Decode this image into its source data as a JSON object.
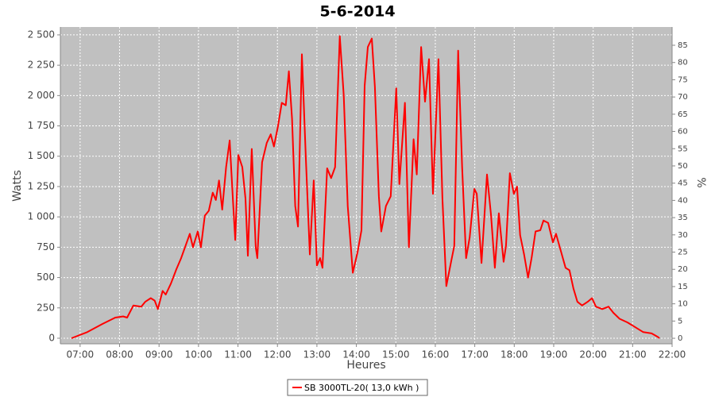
{
  "chart_data": {
    "type": "line",
    "title": "5-6-2014",
    "xlabel": "Heures",
    "ylabel": "Watts",
    "y2label": "%",
    "xlim": [
      6.5,
      22
    ],
    "xticks": [
      {
        "value": 7,
        "label": "07:00"
      },
      {
        "value": 8,
        "label": "08:00"
      },
      {
        "value": 9,
        "label": "09:00"
      },
      {
        "value": 10,
        "label": "10:00"
      },
      {
        "value": 11,
        "label": "11:00"
      },
      {
        "value": 12,
        "label": "12:00"
      },
      {
        "value": 13,
        "label": "13:00"
      },
      {
        "value": 14,
        "label": "14:00"
      },
      {
        "value": 15,
        "label": "15:00"
      },
      {
        "value": 16,
        "label": "16:00"
      },
      {
        "value": 17,
        "label": "17:00"
      },
      {
        "value": 18,
        "label": "18:00"
      },
      {
        "value": 19,
        "label": "19:00"
      },
      {
        "value": 20,
        "label": "20:00"
      },
      {
        "value": 21,
        "label": "21:00"
      },
      {
        "value": 22,
        "label": "22:00"
      }
    ],
    "ylim": [
      -46,
      2565
    ],
    "yticks": [
      0,
      250,
      500,
      750,
      {
        "value": 1000,
        "label": "1 000"
      },
      {
        "value": 1250,
        "label": "1 250"
      },
      {
        "value": 1500,
        "label": "1 500"
      },
      {
        "value": 1750,
        "label": "1 750"
      },
      {
        "value": 2000,
        "label": "2 000"
      },
      {
        "value": 2250,
        "label": "2 250"
      },
      {
        "value": 2500,
        "label": "2 500"
      }
    ],
    "y2lim": [
      -1.6,
      90.3
    ],
    "y2ticks": [
      0,
      5,
      10,
      15,
      20,
      25,
      30,
      35,
      40,
      45,
      50,
      55,
      60,
      65,
      70,
      75,
      80,
      85
    ],
    "grid": true,
    "legend": "bottom",
    "x": [
      6.78,
      7.18,
      7.58,
      7.89,
      8.09,
      8.19,
      8.35,
      8.55,
      8.65,
      8.79,
      8.89,
      8.97,
      9.09,
      9.17,
      9.3,
      9.44,
      9.56,
      9.68,
      9.78,
      9.86,
      9.98,
      10.06,
      10.16,
      10.26,
      10.36,
      10.44,
      10.52,
      10.6,
      10.7,
      10.79,
      10.87,
      10.93,
      11.01,
      11.11,
      11.19,
      11.25,
      11.35,
      11.45,
      11.49,
      11.61,
      11.73,
      11.83,
      11.91,
      12.01,
      12.11,
      12.21,
      12.29,
      12.37,
      12.45,
      12.52,
      12.62,
      12.72,
      12.82,
      12.92,
      13.0,
      13.08,
      13.14,
      13.26,
      13.36,
      13.46,
      13.58,
      13.68,
      13.78,
      13.91,
      14.03,
      14.13,
      14.21,
      14.29,
      14.39,
      14.47,
      14.57,
      14.63,
      14.75,
      14.87,
      14.95,
      15.01,
      15.09,
      15.23,
      15.33,
      15.45,
      15.53,
      15.64,
      15.74,
      15.84,
      15.94,
      16.08,
      16.18,
      16.28,
      16.4,
      16.48,
      16.58,
      16.68,
      16.78,
      16.87,
      16.99,
      17.05,
      17.17,
      17.31,
      17.41,
      17.51,
      17.61,
      17.73,
      17.79,
      17.89,
      17.99,
      18.07,
      18.15,
      18.25,
      18.35,
      18.44,
      18.54,
      18.66,
      18.74,
      18.86,
      18.98,
      19.06,
      19.18,
      19.3,
      19.4,
      19.5,
      19.6,
      19.72,
      19.86,
      19.97,
      20.07,
      20.23,
      20.39,
      20.51,
      20.67,
      20.87,
      21.07,
      21.27,
      21.48,
      21.64,
      21.68
    ],
    "series": [
      {
        "name": "SB 3000TL-20( 13,0 kWh )",
        "color": "#ff0000",
        "values": [
          0,
          50,
          120,
          170,
          180,
          170,
          270,
          260,
          300,
          330,
          310,
          240,
          390,
          360,
          450,
          570,
          660,
          770,
          860,
          750,
          880,
          750,
          1010,
          1050,
          1200,
          1140,
          1300,
          1060,
          1410,
          1630,
          1150,
          810,
          1510,
          1410,
          1150,
          680,
          1560,
          750,
          660,
          1450,
          1610,
          1680,
          1580,
          1740,
          1940,
          1920,
          2200,
          1810,
          1090,
          920,
          2340,
          1480,
          690,
          1300,
          600,
          660,
          580,
          1400,
          1320,
          1410,
          2490,
          2000,
          1090,
          540,
          710,
          890,
          2080,
          2400,
          2470,
          2070,
          1170,
          880,
          1090,
          1170,
          1680,
          2060,
          1270,
          1940,
          750,
          1640,
          1350,
          2400,
          1950,
          2300,
          1190,
          2300,
          1150,
          430,
          630,
          760,
          2370,
          1410,
          660,
          830,
          1230,
          1190,
          620,
          1350,
          1020,
          580,
          1030,
          630,
          760,
          1360,
          1190,
          1250,
          850,
          690,
          500,
          660,
          880,
          890,
          970,
          950,
          790,
          860,
          720,
          580,
          560,
          410,
          300,
          270,
          300,
          330,
          260,
          240,
          260,
          210,
          160,
          130,
          90,
          50,
          40,
          10,
          0
        ]
      }
    ]
  }
}
